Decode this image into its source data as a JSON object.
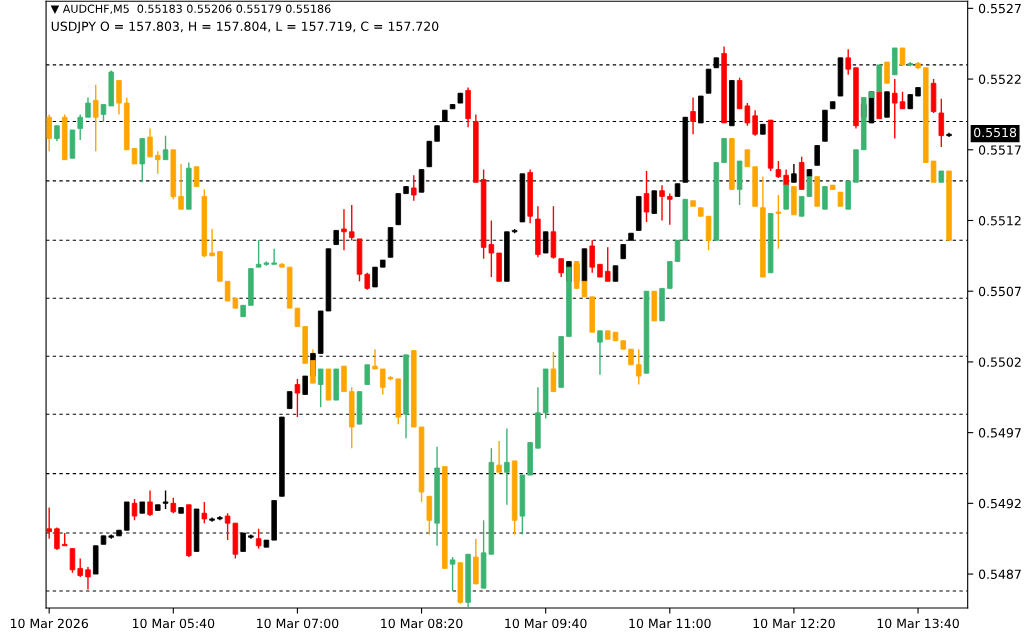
{
  "chart_data": {
    "type": "candlestick",
    "x": [
      "2026-03-10T04:20",
      "2026-03-10T04:25",
      "2026-03-10T04:30",
      "2026-03-10T04:35",
      "2026-03-10T04:40",
      "2026-03-10T04:45",
      "2026-03-10T04:50",
      "2026-03-10T04:55",
      "2026-03-10T05:00",
      "2026-03-10T05:05",
      "2026-03-10T05:10",
      "2026-03-10T05:15",
      "2026-03-10T05:20",
      "2026-03-10T05:25",
      "2026-03-10T05:30",
      "2026-03-10T05:35",
      "2026-03-10T05:40",
      "2026-03-10T05:45",
      "2026-03-10T05:50",
      "2026-03-10T05:55",
      "2026-03-10T06:00",
      "2026-03-10T06:05",
      "2026-03-10T06:10",
      "2026-03-10T06:15",
      "2026-03-10T06:20",
      "2026-03-10T06:25",
      "2026-03-10T06:30",
      "2026-03-10T06:35",
      "2026-03-10T06:40",
      "2026-03-10T06:45",
      "2026-03-10T06:50",
      "2026-03-10T06:55",
      "2026-03-10T07:00",
      "2026-03-10T07:05",
      "2026-03-10T07:10",
      "2026-03-10T07:15",
      "2026-03-10T07:20",
      "2026-03-10T07:25",
      "2026-03-10T07:30",
      "2026-03-10T07:35",
      "2026-03-10T07:40",
      "2026-03-10T07:45",
      "2026-03-10T07:50",
      "2026-03-10T07:55",
      "2026-03-10T08:00",
      "2026-03-10T08:05",
      "2026-03-10T08:10",
      "2026-03-10T08:15",
      "2026-03-10T08:20",
      "2026-03-10T08:25",
      "2026-03-10T08:30",
      "2026-03-10T08:35",
      "2026-03-10T08:40",
      "2026-03-10T08:45",
      "2026-03-10T08:50",
      "2026-03-10T08:55",
      "2026-03-10T09:00",
      "2026-03-10T09:05",
      "2026-03-10T09:10",
      "2026-03-10T09:15",
      "2026-03-10T09:20",
      "2026-03-10T09:25",
      "2026-03-10T09:30",
      "2026-03-10T09:35",
      "2026-03-10T09:40",
      "2026-03-10T09:45",
      "2026-03-10T09:50",
      "2026-03-10T09:55",
      "2026-03-10T10:00",
      "2026-03-10T10:05",
      "2026-03-10T10:10",
      "2026-03-10T10:15",
      "2026-03-10T10:20",
      "2026-03-10T10:25",
      "2026-03-10T10:30",
      "2026-03-10T10:35",
      "2026-03-10T10:40",
      "2026-03-10T10:45",
      "2026-03-10T10:50",
      "2026-03-10T10:55",
      "2026-03-10T11:00",
      "2026-03-10T11:05",
      "2026-03-10T11:10",
      "2026-03-10T11:15",
      "2026-03-10T11:20",
      "2026-03-10T11:25",
      "2026-03-10T11:30",
      "2026-03-10T11:35",
      "2026-03-10T11:40",
      "2026-03-10T11:45",
      "2026-03-10T11:50",
      "2026-03-10T11:55",
      "2026-03-10T12:00",
      "2026-03-10T12:05",
      "2026-03-10T12:10",
      "2026-03-10T12:15",
      "2026-03-10T12:20",
      "2026-03-10T12:25",
      "2026-03-10T12:30",
      "2026-03-10T12:35",
      "2026-03-10T12:40",
      "2026-03-10T12:45",
      "2026-03-10T12:50",
      "2026-03-10T12:55",
      "2026-03-10T13:00",
      "2026-03-10T13:05",
      "2026-03-10T13:10",
      "2026-03-10T13:15",
      "2026-03-10T13:20",
      "2026-03-10T13:25",
      "2026-03-10T13:30",
      "2026-03-10T13:35",
      "2026-03-10T13:40",
      "2026-03-10T13:45",
      "2026-03-10T13:50",
      "2026-03-10T13:55",
      "2026-03-10T14:00"
    ],
    "series": [
      {
        "ohlc": [
          [
            0.54902,
            0.54917,
            0.54895,
            0.549
          ],
          [
            0.54902,
            0.54903,
            0.54887,
            0.54888
          ],
          [
            0.54891,
            0.54899,
            0.5489,
            0.5489
          ],
          [
            0.54888,
            0.54888,
            0.54871,
            0.54873
          ],
          [
            0.54874,
            0.54881,
            0.54868,
            0.54869
          ],
          [
            0.54873,
            0.54875,
            0.54859,
            0.54868
          ],
          [
            0.5487,
            0.5489,
            0.5487,
            0.5489
          ],
          [
            0.54891,
            0.54897,
            0.54891,
            0.54897
          ],
          [
            0.54896,
            0.54898,
            0.54895,
            0.54897
          ],
          [
            0.54897,
            0.54901,
            0.54897,
            0.54901
          ],
          [
            0.54901,
            0.54921,
            0.54901,
            0.54921
          ],
          [
            0.5492,
            0.54923,
            0.54908,
            0.54911
          ],
          [
            0.54913,
            0.54921,
            0.54913,
            0.54921
          ],
          [
            0.54921,
            0.54929,
            0.54911,
            0.54912
          ],
          [
            0.54915,
            0.54919,
            0.54915,
            0.54919
          ],
          [
            0.5492,
            0.54929,
            0.54916,
            0.54921
          ],
          [
            0.5492,
            0.54924,
            0.54913,
            0.54914
          ],
          [
            0.54913,
            0.54917,
            0.54913,
            0.54917
          ],
          [
            0.54919,
            0.54919,
            0.54882,
            0.54883
          ],
          [
            0.54886,
            0.54916,
            0.54886,
            0.54916
          ],
          [
            0.54913,
            0.54921,
            0.54906,
            0.54909
          ],
          [
            0.54908,
            0.5491,
            0.54907,
            0.54909
          ],
          [
            0.54909,
            0.54911,
            0.54908,
            0.5491
          ],
          [
            0.54911,
            0.54913,
            0.54894,
            0.54906
          ],
          [
            0.54906,
            0.54906,
            0.54881,
            0.54884
          ],
          [
            0.54886,
            0.54899,
            0.54886,
            0.54899
          ],
          [
            0.54896,
            0.54898,
            0.54895,
            0.54897
          ],
          [
            0.54895,
            0.54902,
            0.54888,
            0.5489
          ],
          [
            0.54889,
            0.54894,
            0.54889,
            0.54894
          ],
          [
            0.54894,
            0.54922,
            0.54894,
            0.54922
          ],
          [
            0.54925,
            0.54981,
            0.54925,
            0.54981
          ],
          [
            0.54987,
            0.54999,
            0.54987,
            0.54999
          ],
          [
            0.55004,
            0.55008,
            0.54981,
            0.54998
          ],
          [
            0.54997,
            0.5501,
            0.54997,
            0.5501
          ],
          [
            0.5501,
            0.55026,
            0.5501,
            0.55026
          ],
          [
            0.55026,
            0.55056,
            0.55026,
            0.55056
          ],
          [
            0.55056,
            0.551,
            0.55056,
            0.551
          ],
          [
            0.55103,
            0.55113,
            0.55103,
            0.55113
          ],
          [
            0.55114,
            0.55128,
            0.55099,
            0.55112
          ],
          [
            0.55112,
            0.55131,
            0.55106,
            0.55108
          ],
          [
            0.55107,
            0.55107,
            0.55077,
            0.55082
          ],
          [
            0.55082,
            0.55083,
            0.55071,
            0.55072
          ],
          [
            0.55073,
            0.55087,
            0.55073,
            0.55087
          ],
          [
            0.55087,
            0.55092,
            0.55087,
            0.55092
          ],
          [
            0.55094,
            0.55115,
            0.55094,
            0.55115
          ],
          [
            0.55117,
            0.55139,
            0.55117,
            0.55139
          ],
          [
            0.55139,
            0.55144,
            0.55139,
            0.55144
          ],
          [
            0.55143,
            0.55152,
            0.55134,
            0.55138
          ],
          [
            0.5514,
            0.55156,
            0.5514,
            0.55156
          ],
          [
            0.55158,
            0.55176,
            0.55158,
            0.55176
          ],
          [
            0.55176,
            0.55187,
            0.55176,
            0.55187
          ],
          [
            0.5519,
            0.55198,
            0.5519,
            0.55198
          ],
          [
            0.55199,
            0.55202,
            0.55199,
            0.55202
          ],
          [
            0.55203,
            0.5521,
            0.55203,
            0.5521
          ],
          [
            0.55212,
            0.55214,
            0.55186,
            0.55192
          ],
          [
            0.5519,
            0.55195,
            0.55147,
            0.55147
          ],
          [
            0.55149,
            0.55156,
            0.55093,
            0.55101
          ],
          [
            0.55103,
            0.5512,
            0.5508,
            0.55097
          ],
          [
            0.55097,
            0.55097,
            0.55077,
            0.55077
          ],
          [
            0.55077,
            0.55112,
            0.55077,
            0.55112
          ],
          [
            0.55112,
            0.55114,
            0.55111,
            0.55113
          ],
          [
            0.55119,
            0.55153,
            0.55119,
            0.55153
          ],
          [
            0.55154,
            0.55156,
            0.55118,
            0.55123
          ],
          [
            0.55121,
            0.5513,
            0.55094,
            0.55096
          ],
          [
            0.55097,
            0.55112,
            0.55097,
            0.55112
          ],
          [
            0.55112,
            0.5513,
            0.55093,
            0.55094
          ],
          [
            0.55093,
            0.55093,
            0.5508,
            0.55083
          ],
          [
            0.55077,
            0.55091,
            0.55077,
            0.55091
          ],
          [
            0.55089,
            0.55089,
            0.55077,
            0.55077
          ],
          [
            0.55077,
            0.551,
            0.55077,
            0.551
          ],
          [
            0.55102,
            0.55106,
            0.55083,
            0.55087
          ],
          [
            0.55089,
            0.55089,
            0.5508,
            0.5508
          ],
          [
            0.55084,
            0.55101,
            0.55077,
            0.55077
          ],
          [
            0.55077,
            0.55088,
            0.55077,
            0.55088
          ],
          [
            0.55093,
            0.55103,
            0.55093,
            0.55103
          ],
          [
            0.55106,
            0.55111,
            0.55106,
            0.55111
          ],
          [
            0.55113,
            0.55137,
            0.55113,
            0.55137
          ],
          [
            0.55139,
            0.55155,
            0.55119,
            0.55126
          ],
          [
            0.55125,
            0.55141,
            0.55125,
            0.55141
          ],
          [
            0.55141,
            0.55145,
            0.5512,
            0.55137
          ],
          [
            0.55137,
            0.55139,
            0.55117,
            0.55135
          ],
          [
            0.55137,
            0.55146,
            0.55137,
            0.55146
          ],
          [
            0.55147,
            0.55193,
            0.55147,
            0.55193
          ],
          [
            0.55197,
            0.55207,
            0.55181,
            0.5519
          ],
          [
            0.55189,
            0.55208,
            0.55189,
            0.55208
          ],
          [
            0.5521,
            0.55227,
            0.5521,
            0.55227
          ],
          [
            0.55228,
            0.55235,
            0.55228,
            0.55235
          ],
          [
            0.55238,
            0.55243,
            0.55189,
            0.55189
          ],
          [
            0.55187,
            0.55219,
            0.55187,
            0.55219
          ],
          [
            0.55219,
            0.55221,
            0.55199,
            0.55199
          ],
          [
            0.55201,
            0.55203,
            0.55187,
            0.55189
          ],
          [
            0.55194,
            0.55198,
            0.5518,
            0.55181
          ],
          [
            0.55181,
            0.55188,
            0.55181,
            0.55188
          ],
          [
            0.55191,
            0.55191,
            0.55155,
            0.55157
          ],
          [
            0.55156,
            0.55162,
            0.5515,
            0.55151
          ],
          [
            0.55152,
            0.55156,
            0.55145,
            0.55145
          ],
          [
            0.55147,
            0.5516,
            0.55147,
            0.55153
          ],
          [
            0.55161,
            0.55165,
            0.55142,
            0.55142
          ],
          [
            0.55151,
            0.55156,
            0.55151,
            0.55156
          ],
          [
            0.55159,
            0.55173,
            0.55159,
            0.55173
          ],
          [
            0.55176,
            0.55198,
            0.55176,
            0.55198
          ],
          [
            0.55199,
            0.55204,
            0.55199,
            0.55204
          ],
          [
            0.55208,
            0.55235,
            0.55208,
            0.55235
          ],
          [
            0.55235,
            0.55241,
            0.55223,
            0.55227
          ],
          [
            0.55228,
            0.55228,
            0.55185,
            0.55187
          ],
          [
            0.55193,
            0.55202,
            0.55193,
            0.55202
          ],
          [
            0.55189,
            0.55211,
            0.55189,
            0.55211
          ],
          [
            0.55211,
            0.55211,
            0.55192,
            0.55192
          ],
          [
            0.55193,
            0.55211,
            0.55193,
            0.55211
          ],
          [
            0.5521,
            0.5522,
            0.55178,
            0.55203
          ],
          [
            0.55204,
            0.55211,
            0.55199,
            0.55199
          ],
          [
            0.55199,
            0.55209,
            0.55199,
            0.55209
          ],
          [
            0.55208,
            0.55214,
            0.55208,
            0.55214
          ],
          null,
          [
            0.55217,
            0.5522,
            0.55196,
            0.55197
          ],
          [
            0.55196,
            0.55206,
            0.55172,
            0.5518
          ],
          [
            0.5518,
            0.55182,
            0.55179,
            0.55181
          ]
        ],
        "colors": [
          "#ff0000",
          "#ff0000",
          "#ff0000",
          "#ff0000",
          "#ff0000",
          "#ff0000",
          "#000000",
          "#000000",
          "#000000",
          "#000000",
          "#000000",
          "#ff0000",
          "#000000",
          "#ff0000",
          "#000000",
          "#000000",
          "#ff0000",
          "#000000",
          "#ff0000",
          "#000000",
          "#ff0000",
          "#000000",
          "#000000",
          "#ff0000",
          "#ff0000",
          "#000000",
          "#000000",
          "#ff0000",
          "#000000",
          "#000000",
          "#000000",
          "#000000",
          "#ff0000",
          "#000000",
          "#000000",
          "#000000",
          "#000000",
          "#000000",
          "#ff0000",
          "#ff0000",
          "#ff0000",
          "#ff0000",
          "#000000",
          "#000000",
          "#000000",
          "#000000",
          "#000000",
          "#ff0000",
          "#000000",
          "#000000",
          "#000000",
          "#000000",
          "#000000",
          "#000000",
          "#ff0000",
          "#ff0000",
          "#ff0000",
          "#ff0000",
          "#ff0000",
          "#000000",
          "#000000",
          "#000000",
          "#ff0000",
          "#ff0000",
          "#000000",
          "#ff0000",
          "#ff0000",
          "#000000",
          "#ff0000",
          "#000000",
          "#ff0000",
          "#ff0000",
          "#ff0000",
          "#000000",
          "#000000",
          "#000000",
          "#000000",
          "#ff0000",
          "#000000",
          "#ff0000",
          "#ff0000",
          "#000000",
          "#000000",
          "#ff0000",
          "#000000",
          "#000000",
          "#000000",
          "#ff0000",
          "#000000",
          "#ff0000",
          "#ff0000",
          "#ff0000",
          "#000000",
          "#ff0000",
          "#ff0000",
          "#ff0000",
          "#000000",
          "#ff0000",
          "#000000",
          "#000000",
          "#000000",
          "#000000",
          "#000000",
          "#ff0000",
          "#ff0000",
          "#000000",
          "#000000",
          "#ff0000",
          "#000000",
          "#ff0000",
          "#ff0000",
          "#000000",
          "#000000",
          "#000000",
          "#ff0000",
          "#ff0000",
          "#000000"
        ]
      },
      {
        "ohlc": [
          [
            0.55193,
            0.55195,
            0.55169,
            0.55178
          ],
          [
            0.55178,
            0.55187,
            0.55176,
            0.55187
          ],
          [
            0.55193,
            0.55195,
            0.55163,
            0.55163
          ],
          [
            0.55164,
            0.55184,
            0.55164,
            0.55184
          ],
          [
            0.55185,
            0.55195,
            0.55177,
            0.55193
          ],
          [
            0.55193,
            0.55207,
            0.55193,
            0.55203
          ],
          [
            0.55205,
            0.55216,
            0.55169,
            0.55193
          ],
          [
            0.55195,
            0.55202,
            0.5519,
            0.55202
          ],
          [
            0.55201,
            0.55226,
            0.55201,
            0.55225
          ],
          [
            0.55219,
            0.55219,
            0.55195,
            0.55203
          ],
          [
            0.55203,
            0.55207,
            0.5517,
            0.5517
          ],
          [
            0.55171,
            0.55171,
            0.5516,
            0.5516
          ],
          [
            0.5516,
            0.55178,
            0.55147,
            0.55178
          ],
          [
            0.55179,
            0.55185,
            0.55165,
            0.55165
          ],
          [
            0.55166,
            0.55169,
            0.55153,
            0.55163
          ],
          [
            0.55163,
            0.5518,
            0.55163,
            0.5517
          ],
          [
            0.5517,
            0.5517,
            0.55135,
            0.55137
          ],
          [
            0.55137,
            0.5516,
            0.55128,
            0.55128
          ],
          [
            0.55128,
            0.55161,
            0.55128,
            0.55157
          ],
          [
            0.55158,
            0.55158,
            0.55144,
            0.55144
          ],
          [
            0.55137,
            0.55142,
            0.55094,
            0.55095
          ],
          [
            0.55097,
            0.55114,
            0.55095,
            0.55095
          ],
          [
            0.55098,
            0.55098,
            0.55077,
            0.55077
          ],
          [
            0.55077,
            0.55077,
            0.55063,
            0.55063
          ],
          [
            0.55065,
            0.55065,
            0.55058,
            0.55058
          ],
          [
            0.55052,
            0.5506,
            0.55052,
            0.5506
          ],
          [
            0.5506,
            0.55086,
            0.5506,
            0.55086
          ],
          [
            0.55087,
            0.55106,
            0.55087,
            0.55089
          ],
          [
            0.55089,
            0.55091,
            0.55088,
            0.5509
          ],
          [
            0.55089,
            0.551,
            0.55089,
            0.5509
          ],
          [
            0.55089,
            0.5509,
            0.55087,
            0.55087
          ],
          [
            0.55087,
            0.55087,
            0.55058,
            0.55058
          ],
          [
            0.55058,
            0.55058,
            0.55045,
            0.55045
          ],
          [
            0.55045,
            0.55045,
            0.55019,
            0.55019
          ],
          [
            0.55021,
            0.55029,
            0.55005,
            0.55005
          ],
          [
            0.55004,
            0.55015,
            0.54988,
            0.55015
          ],
          [
            0.55015,
            0.55015,
            0.54993,
            0.54993
          ],
          [
            0.54993,
            0.55015,
            0.54993,
            0.55015
          ],
          [
            0.55017,
            0.55017,
            0.54999,
            0.54999
          ],
          [
            0.54999,
            0.55002,
            0.54959,
            0.54974
          ],
          [
            0.54976,
            0.54999,
            0.54976,
            0.54999
          ],
          [
            0.55004,
            0.55018,
            0.55004,
            0.55018
          ],
          [
            0.55017,
            0.55029,
            0.55015,
            0.55015
          ],
          [
            0.55015,
            0.55015,
            0.54997,
            0.55002
          ],
          [
            0.55009,
            0.5501,
            0.55007,
            0.55008
          ],
          [
            0.55008,
            0.55008,
            0.54976,
            0.54981
          ],
          [
            0.54983,
            0.55025,
            0.54966,
            0.55025
          ],
          [
            0.55028,
            0.55028,
            0.54974,
            0.54974
          ],
          [
            0.54974,
            0.54974,
            0.54921,
            0.54928
          ],
          [
            0.54925,
            0.54925,
            0.54898,
            0.54908
          ],
          [
            0.54906,
            0.5496,
            0.5489,
            0.54945
          ],
          [
            0.54946,
            0.54946,
            0.54874,
            0.54874
          ],
          [
            0.54877,
            0.54882,
            0.54858,
            0.5488
          ],
          [
            0.54878,
            0.54878,
            0.54849,
            0.5485
          ],
          [
            0.5485,
            0.54884,
            0.54846,
            0.54884
          ],
          [
            0.54882,
            0.54895,
            0.54863,
            0.54863
          ],
          [
            0.5486,
            0.54908,
            0.5486,
            0.54885
          ],
          [
            0.54884,
            0.54959,
            0.54884,
            0.54949
          ],
          [
            0.54947,
            0.54964,
            0.54942,
            0.54942
          ],
          [
            0.54942,
            0.54973,
            0.54919,
            0.54949
          ],
          [
            0.5495,
            0.5495,
            0.54898,
            0.54908
          ],
          [
            0.54911,
            0.5494,
            0.54898,
            0.5494
          ],
          [
            0.5494,
            0.54963,
            0.5494,
            0.54963
          ],
          [
            0.54959,
            0.55002,
            0.54959,
            0.54984
          ],
          [
            0.54984,
            0.55015,
            0.5498,
            0.55015
          ],
          [
            0.55015,
            0.55027,
            0.54999,
            0.54999
          ],
          [
            0.55002,
            0.55038,
            0.55002,
            0.55038
          ],
          [
            0.55038,
            0.55087,
            0.55038,
            0.55087
          ],
          [
            0.55091,
            0.55091,
            0.55072,
            0.55072
          ],
          [
            0.55077,
            0.55077,
            0.55066,
            0.55066
          ],
          [
            0.55066,
            0.55066,
            0.55041,
            0.55041
          ],
          [
            0.55034,
            0.55042,
            0.55011,
            0.55042
          ],
          [
            0.55042,
            0.55042,
            0.55036,
            0.55036
          ],
          [
            0.55041,
            0.55041,
            0.55035,
            0.55035
          ],
          [
            0.55035,
            0.55035,
            0.55029,
            0.55029
          ],
          [
            0.55029,
            0.55029,
            0.55018,
            0.55018
          ],
          [
            0.55018,
            0.55029,
            0.55004,
            0.5501
          ],
          [
            0.55012,
            0.5507,
            0.55012,
            0.5507
          ],
          [
            0.5507,
            0.5507,
            0.55049,
            0.55049
          ],
          [
            0.55049,
            0.55072,
            0.55049,
            0.55072
          ],
          [
            0.55072,
            0.55091,
            0.55072,
            0.55091
          ],
          [
            0.55091,
            0.55106,
            0.55091,
            0.55106
          ],
          [
            0.55106,
            0.55135,
            0.55106,
            0.55135
          ],
          [
            0.55134,
            0.55134,
            0.5513,
            0.5513
          ],
          [
            0.55129,
            0.55129,
            0.55123,
            0.55123
          ],
          [
            0.55123,
            0.55123,
            0.55099,
            0.55106
          ],
          [
            0.55106,
            0.55161,
            0.55106,
            0.55161
          ],
          [
            0.55161,
            0.55178,
            0.55161,
            0.55178
          ],
          [
            0.55178,
            0.55178,
            0.55142,
            0.55142
          ],
          [
            0.55142,
            0.55162,
            0.55131,
            0.55162
          ],
          [
            0.5517,
            0.5517,
            0.55158,
            0.55158
          ],
          [
            0.55158,
            0.55158,
            0.5513,
            0.5513
          ],
          [
            0.55129,
            0.55151,
            0.5508,
            0.5508
          ],
          [
            0.55083,
            0.55125,
            0.55083,
            0.55125
          ],
          [
            0.55126,
            0.55138,
            0.551,
            0.55125
          ],
          [
            0.55128,
            0.55145,
            0.55128,
            0.55145
          ],
          [
            0.55144,
            0.55144,
            0.55124,
            0.55124
          ],
          [
            0.55123,
            0.55137,
            0.55123,
            0.55137
          ],
          [
            0.55137,
            0.55151,
            0.55137,
            0.55151
          ],
          [
            0.55151,
            0.55151,
            0.5513,
            0.5513
          ],
          [
            0.55128,
            0.55144,
            0.55128,
            0.55144
          ],
          [
            0.55145,
            0.55145,
            0.55142,
            0.55142
          ],
          [
            0.5514,
            0.5514,
            0.5513,
            0.5513
          ],
          [
            0.55128,
            0.55148,
            0.55128,
            0.55148
          ],
          [
            0.55147,
            0.5517,
            0.55147,
            0.5517
          ],
          [
            0.5517,
            0.55207,
            0.5517,
            0.55207
          ],
          [
            0.55207,
            0.55211,
            0.55207,
            0.55211
          ],
          [
            0.55211,
            0.5523,
            0.55211,
            0.5523
          ],
          [
            0.55232,
            0.55232,
            0.55217,
            0.55217
          ],
          [
            0.55223,
            0.55242,
            0.55223,
            0.55242
          ],
          [
            0.55242,
            0.55242,
            0.5523,
            0.5523
          ],
          [
            0.5523,
            0.55232,
            0.55229,
            0.55231
          ],
          [
            0.55231,
            0.55232,
            0.55227,
            0.55228
          ],
          [
            0.55228,
            0.55228,
            0.55161,
            0.55161
          ],
          [
            0.55162,
            0.55162,
            0.55147,
            0.55147
          ],
          [
            0.55147,
            0.55155,
            0.55147,
            0.55155
          ],
          [
            0.55155,
            0.55155,
            0.55106,
            0.55106
          ]
        ],
        "colors": [
          "#ffa500",
          "#3cb371",
          "#ffa500",
          "#3cb371",
          "#3cb371",
          "#3cb371",
          "#ffa500",
          "#3cb371",
          "#3cb371",
          "#ffa500",
          "#ffa500",
          "#ffa500",
          "#3cb371",
          "#ffa500",
          "#ffa500",
          "#3cb371",
          "#ffa500",
          "#ffa500",
          "#3cb371",
          "#ffa500",
          "#ffa500",
          "#ffa500",
          "#ffa500",
          "#ffa500",
          "#ffa500",
          "#3cb371",
          "#3cb371",
          "#3cb371",
          "#3cb371",
          "#3cb371",
          "#ffa500",
          "#ffa500",
          "#ffa500",
          "#ffa500",
          "#ffa500",
          "#3cb371",
          "#ffa500",
          "#3cb371",
          "#ffa500",
          "#ffa500",
          "#3cb371",
          "#3cb371",
          "#ffa500",
          "#ffa500",
          "#ffa500",
          "#ffa500",
          "#3cb371",
          "#ffa500",
          "#ffa500",
          "#ffa500",
          "#3cb371",
          "#ffa500",
          "#3cb371",
          "#ffa500",
          "#3cb371",
          "#ffa500",
          "#3cb371",
          "#3cb371",
          "#ffa500",
          "#3cb371",
          "#ffa500",
          "#3cb371",
          "#3cb371",
          "#3cb371",
          "#3cb371",
          "#ffa500",
          "#3cb371",
          "#3cb371",
          "#ffa500",
          "#ffa500",
          "#ffa500",
          "#3cb371",
          "#ffa500",
          "#ffa500",
          "#ffa500",
          "#ffa500",
          "#ffa500",
          "#3cb371",
          "#ffa500",
          "#3cb371",
          "#3cb371",
          "#3cb371",
          "#3cb371",
          "#ffa500",
          "#ffa500",
          "#ffa500",
          "#3cb371",
          "#3cb371",
          "#ffa500",
          "#3cb371",
          "#ffa500",
          "#ffa500",
          "#ffa500",
          "#3cb371",
          "#ffa500",
          "#3cb371",
          "#ffa500",
          "#3cb371",
          "#3cb371",
          "#ffa500",
          "#3cb371",
          "#ffa500",
          "#ffa500",
          "#3cb371",
          "#3cb371",
          "#3cb371",
          "#3cb371",
          "#3cb371",
          "#ffa500",
          "#3cb371",
          "#ffa500",
          "#3cb371",
          "#ffa500",
          "#ffa500",
          "#ffa500",
          "#3cb371",
          "#ffa500"
        ]
      }
    ],
    "xlim": [
      "2026-03-10T04:18",
      "2026-03-10T14:12"
    ],
    "xticks": [
      {
        "value": "2026-03-10T04:20",
        "label": "10 Mar 2026"
      },
      {
        "value": "2026-03-10T05:40",
        "label": "10 Mar 05:40"
      },
      {
        "value": "2026-03-10T07:00",
        "label": "10 Mar 07:00"
      },
      {
        "value": "2026-03-10T08:20",
        "label": "10 Mar 08:20"
      },
      {
        "value": "2026-03-10T09:40",
        "label": "10 Mar 09:40"
      },
      {
        "value": "2026-03-10T11:00",
        "label": "10 Mar 11:00"
      },
      {
        "value": "2026-03-10T12:20",
        "label": "10 Mar 12:20"
      },
      {
        "value": "2026-03-10T13:40",
        "label": "10 Mar 13:40"
      }
    ],
    "ylim": [
      0.54846,
      0.55275
    ],
    "yticks": [
      {
        "value": 0.5487,
        "label": "0.5487"
      },
      {
        "value": 0.5492,
        "label": "0.5492"
      },
      {
        "value": 0.5497,
        "label": "0.5497"
      },
      {
        "value": 0.5502,
        "label": "0.5502"
      },
      {
        "value": 0.5507,
        "label": "0.5507"
      },
      {
        "value": 0.5512,
        "label": "0.5512"
      },
      {
        "value": 0.5517,
        "label": "0.5517"
      },
      {
        "value": 0.5522,
        "label": "0.5522"
      },
      {
        "value": 0.5527,
        "label": "0.5527"
      }
    ],
    "ref_lines": [
      {
        "axis": "y",
        "value": 0.5523,
        "color": "#000000",
        "line_style": "dashed"
      },
      {
        "axis": "y",
        "value": 0.5519,
        "color": "#000000",
        "line_style": "dashed"
      },
      {
        "axis": "y",
        "value": 0.55148,
        "color": "#000000",
        "line_style": "dashed"
      },
      {
        "axis": "y",
        "value": 0.55106,
        "color": "#000000",
        "line_style": "dashed"
      },
      {
        "axis": "y",
        "value": 0.55065,
        "color": "#000000",
        "line_style": "dashed"
      },
      {
        "axis": "y",
        "value": 0.55024,
        "color": "#000000",
        "line_style": "dashed"
      },
      {
        "axis": "y",
        "value": 0.54983,
        "color": "#000000",
        "line_style": "dashed"
      },
      {
        "axis": "y",
        "value": 0.54941,
        "color": "#000000",
        "line_style": "dashed"
      },
      {
        "axis": "y",
        "value": 0.54899,
        "color": "#000000",
        "line_style": "dashed"
      },
      {
        "axis": "y",
        "value": 0.54858,
        "color": "#000000",
        "line_style": "dashed"
      }
    ],
    "annotations": [
      "▼ AUDCHF,M5  0.55183 0.55206 0.55179 0.55186",
      "USDJPY O = 157.803, H = 157.804, L = 157.719, C = 157.720",
      "0.5518"
    ],
    "grid": false,
    "legend": false
  }
}
